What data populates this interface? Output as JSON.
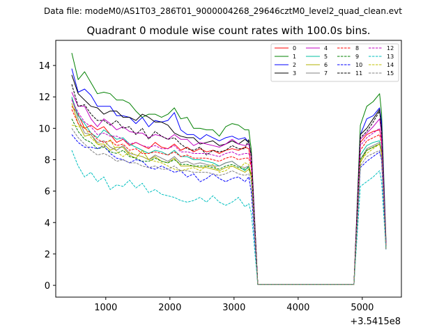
{
  "figure": {
    "suptitle": "Data file: modeM0/AS1T03_286T01_9000004268_29646cztM0_level2_quad_clean.evt"
  },
  "chart_data": {
    "type": "line",
    "title": "Quadrant 0 module wise count rates with 100.0s bins.",
    "xlabel": "",
    "ylabel": "",
    "x_offset_label": "+3.5415e8",
    "xlim": [
      220,
      5610
    ],
    "ylim": [
      -0.75,
      15.6
    ],
    "xticks": [
      1000,
      2000,
      3000,
      4000,
      5000
    ],
    "yticks": [
      0,
      2,
      4,
      6,
      8,
      10,
      12,
      14
    ],
    "grid": false,
    "legend_position": "top-right",
    "x": [
      470,
      570,
      670,
      770,
      870,
      970,
      1070,
      1170,
      1270,
      1370,
      1470,
      1570,
      1670,
      1770,
      1870,
      1970,
      2070,
      2170,
      2270,
      2370,
      2470,
      2570,
      2670,
      2770,
      2870,
      2970,
      3070,
      3170,
      3230,
      3270,
      3370,
      4870,
      4970,
      5070,
      5170,
      5270,
      5300,
      5370
    ],
    "series": [
      {
        "name": "0",
        "color": "#ff0000",
        "dash": false,
        "values": [
          11.4,
          10.9,
          10.0,
          10.2,
          9.9,
          10.1,
          9.6,
          9.1,
          9.3,
          8.9,
          9.1,
          8.9,
          8.7,
          9.1,
          8.8,
          8.7,
          9.0,
          8.6,
          8.8,
          8.5,
          8.7,
          8.5,
          8.6,
          8.4,
          8.6,
          8.7,
          8.6,
          8.8,
          8.7,
          7.6,
          0.05,
          0.05,
          9.1,
          9.6,
          9.8,
          9.9,
          9.3,
          2.5
        ]
      },
      {
        "name": "1",
        "color": "#008000",
        "dash": false,
        "values": [
          14.8,
          13.1,
          13.6,
          12.9,
          12.2,
          12.3,
          12.2,
          11.8,
          11.8,
          11.6,
          11.1,
          10.7,
          10.9,
          10.9,
          10.7,
          10.9,
          11.3,
          10.6,
          10.7,
          10.0,
          10.0,
          9.9,
          9.9,
          9.5,
          10.1,
          10.3,
          10.2,
          9.9,
          9.9,
          8.6,
          0.05,
          0.05,
          10.2,
          11.4,
          11.7,
          12.2,
          11.0,
          2.9
        ]
      },
      {
        "name": "2",
        "color": "#0000ff",
        "dash": false,
        "values": [
          13.8,
          12.3,
          12.5,
          12.1,
          11.4,
          11.4,
          11.4,
          10.8,
          10.8,
          10.7,
          10.3,
          10.7,
          10.1,
          10.5,
          10.4,
          10.5,
          11.0,
          9.9,
          9.6,
          9.6,
          9.3,
          9.6,
          9.4,
          9.2,
          9.4,
          9.5,
          9.3,
          9.4,
          9.1,
          8.3,
          0.05,
          0.05,
          9.6,
          10.6,
          10.8,
          11.3,
          10.4,
          2.7
        ]
      },
      {
        "name": "3",
        "color": "#000000",
        "dash": false,
        "values": [
          13.4,
          12.2,
          11.8,
          11.4,
          11.3,
          10.9,
          11.1,
          11.1,
          10.7,
          10.7,
          10.5,
          10.9,
          10.7,
          10.4,
          10.4,
          10.2,
          9.7,
          9.5,
          9.4,
          9.4,
          9.0,
          9.1,
          9.2,
          8.9,
          9.0,
          9.2,
          9.0,
          9.3,
          9.1,
          8.3,
          0.05,
          0.05,
          9.6,
          10.0,
          10.6,
          11.2,
          10.0,
          2.5
        ]
      },
      {
        "name": "4",
        "color": "#c000c0",
        "dash": false,
        "values": [
          12.3,
          11.4,
          11.4,
          10.6,
          10.1,
          10.6,
          10.3,
          9.9,
          10.1,
          9.8,
          9.7,
          9.7,
          9.4,
          9.6,
          9.5,
          9.3,
          9.6,
          9.3,
          9.3,
          8.9,
          9.1,
          9.0,
          8.9,
          8.8,
          9.0,
          9.3,
          9.0,
          8.9,
          9.0,
          8.2,
          0.05,
          0.05,
          9.3,
          9.7,
          10.1,
          10.6,
          9.7,
          2.6
        ]
      },
      {
        "name": "5",
        "color": "#00bfa0",
        "dash": false,
        "values": [
          12.0,
          10.8,
          10.3,
          9.7,
          9.4,
          9.9,
          9.6,
          9.3,
          9.4,
          9.0,
          8.8,
          8.6,
          8.4,
          8.6,
          8.5,
          8.3,
          8.6,
          8.2,
          8.2,
          8.0,
          8.0,
          7.9,
          7.8,
          7.6,
          7.8,
          7.9,
          7.6,
          7.3,
          7.6,
          7.0,
          0.05,
          0.05,
          8.3,
          8.9,
          9.1,
          9.2,
          8.6,
          2.3
        ]
      },
      {
        "name": "6",
        "color": "#b0b000",
        "dash": false,
        "values": [
          11.6,
          10.3,
          9.5,
          9.6,
          9.0,
          9.0,
          8.6,
          8.8,
          8.8,
          8.3,
          8.1,
          8.6,
          8.0,
          8.2,
          7.9,
          7.8,
          8.1,
          7.6,
          7.6,
          7.6,
          7.5,
          7.5,
          7.4,
          7.3,
          7.5,
          7.6,
          7.4,
          7.2,
          7.4,
          6.9,
          0.05,
          0.05,
          7.8,
          8.6,
          8.8,
          9.0,
          8.4,
          2.3
        ]
      },
      {
        "name": "7",
        "color": "#808080",
        "dash": false,
        "values": [
          11.9,
          10.6,
          9.7,
          9.6,
          9.1,
          9.2,
          8.8,
          8.6,
          8.9,
          8.4,
          8.3,
          8.2,
          8.0,
          8.3,
          8.1,
          7.9,
          8.2,
          7.8,
          7.9,
          7.7,
          7.8,
          7.7,
          7.6,
          7.6,
          7.8,
          7.9,
          7.6,
          7.5,
          7.6,
          7.0,
          0.05,
          0.05,
          8.0,
          8.7,
          8.9,
          9.1,
          8.5,
          2.4
        ]
      },
      {
        "name": "8",
        "color": "#ff0000",
        "dash": true,
        "values": [
          11.2,
          10.3,
          10.0,
          9.7,
          9.3,
          9.1,
          9.2,
          8.9,
          9.0,
          8.6,
          8.7,
          8.4,
          8.4,
          8.5,
          8.4,
          8.3,
          8.5,
          8.2,
          8.3,
          8.1,
          8.1,
          8.1,
          8.0,
          7.9,
          8.1,
          8.2,
          8.0,
          8.1,
          8.1,
          7.5,
          0.05,
          0.05,
          8.6,
          9.2,
          9.4,
          9.6,
          9.0,
          2.5
        ]
      },
      {
        "name": "9",
        "color": "#008000",
        "dash": true,
        "values": [
          10.6,
          9.8,
          9.3,
          9.1,
          8.7,
          8.8,
          8.5,
          8.4,
          8.6,
          8.2,
          8.1,
          7.9,
          7.9,
          8.1,
          7.9,
          7.8,
          8.0,
          7.7,
          7.7,
          7.6,
          7.6,
          7.6,
          7.5,
          7.4,
          7.6,
          7.7,
          7.5,
          7.4,
          7.5,
          7.0,
          0.05,
          0.05,
          8.0,
          8.6,
          8.8,
          9.0,
          8.5,
          2.4
        ]
      },
      {
        "name": "10",
        "color": "#0000ff",
        "dash": true,
        "values": [
          9.6,
          9.1,
          8.8,
          8.8,
          8.7,
          8.9,
          8.4,
          8.1,
          8.0,
          7.8,
          8.0,
          7.9,
          7.5,
          7.4,
          7.6,
          7.4,
          7.2,
          7.3,
          6.9,
          7.1,
          6.6,
          6.8,
          7.1,
          6.8,
          6.6,
          6.8,
          6.9,
          6.6,
          6.9,
          5.9,
          0.05,
          0.05,
          7.5,
          7.9,
          8.2,
          8.5,
          8.0,
          2.3
        ]
      },
      {
        "name": "11",
        "color": "#000000",
        "dash": true,
        "values": [
          12.8,
          11.4,
          11.5,
          10.9,
          10.5,
          10.5,
          10.2,
          10.5,
          10.0,
          10.1,
          9.6,
          10.0,
          9.3,
          9.8,
          9.5,
          9.3,
          9.4,
          9.0,
          8.7,
          8.6,
          8.8,
          8.3,
          8.6,
          8.5,
          8.6,
          8.9,
          8.7,
          8.7,
          9.3,
          8.1,
          0.05,
          0.05,
          9.4,
          9.8,
          10.4,
          11.1,
          9.9,
          2.6
        ]
      },
      {
        "name": "12",
        "color": "#c000c0",
        "dash": true,
        "values": [
          11.8,
          11.0,
          10.4,
          10.1,
          9.6,
          9.7,
          9.5,
          9.5,
          9.3,
          9.0,
          9.1,
          8.9,
          8.8,
          8.9,
          8.7,
          8.7,
          8.9,
          8.5,
          8.5,
          8.4,
          8.4,
          8.4,
          8.3,
          8.2,
          8.4,
          8.5,
          8.3,
          8.4,
          8.4,
          7.7,
          0.05,
          0.05,
          8.9,
          9.4,
          9.7,
          10.0,
          9.3,
          2.6
        ]
      },
      {
        "name": "13",
        "color": "#00bfbf",
        "dash": true,
        "values": [
          8.6,
          7.6,
          6.9,
          7.2,
          6.6,
          6.9,
          6.1,
          6.4,
          6.3,
          6.7,
          6.2,
          6.5,
          5.9,
          6.1,
          5.8,
          5.7,
          5.6,
          5.4,
          5.3,
          5.4,
          5.6,
          5.3,
          5.7,
          5.3,
          5.1,
          5.3,
          5.6,
          5.0,
          5.2,
          4.6,
          0.05,
          0.05,
          6.3,
          6.6,
          6.9,
          7.3,
          6.6,
          2.3
        ]
      },
      {
        "name": "14",
        "color": "#c0c000",
        "dash": true,
        "values": [
          10.2,
          10.1,
          10.1,
          9.4,
          9.0,
          8.8,
          9.3,
          8.5,
          8.2,
          8.5,
          8.3,
          8.2,
          8.0,
          7.9,
          7.8,
          7.6,
          7.4,
          7.3,
          7.4,
          7.5,
          7.3,
          7.6,
          7.7,
          7.2,
          7.3,
          7.6,
          7.4,
          7.8,
          7.7,
          7.0,
          0.05,
          0.05,
          7.9,
          8.4,
          8.7,
          9.0,
          8.4,
          2.4
        ]
      },
      {
        "name": "15",
        "color": "#808080",
        "dash": true,
        "values": [
          10.0,
          9.4,
          9.0,
          8.6,
          8.3,
          8.4,
          8.2,
          7.9,
          8.0,
          7.8,
          7.8,
          7.6,
          7.5,
          7.6,
          7.4,
          7.4,
          7.6,
          7.3,
          7.3,
          7.2,
          7.2,
          7.2,
          7.1,
          7.0,
          7.1,
          7.3,
          7.1,
          7.0,
          7.1,
          6.6,
          0.05,
          0.05,
          7.6,
          8.2,
          8.4,
          8.6,
          8.1,
          2.3
        ]
      }
    ]
  }
}
